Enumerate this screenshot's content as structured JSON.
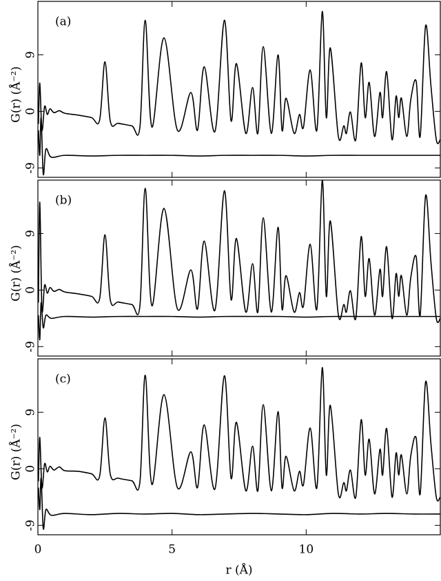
{
  "chart_data": [
    {
      "type": "line",
      "label": "(a)",
      "ylabel": "G(r) (Å⁻²)",
      "xlim": [
        0,
        15
      ],
      "ylim": [
        -10.5,
        17.5
      ],
      "xticks": [
        0,
        5,
        10
      ],
      "yticks": [
        -9,
        0,
        9
      ],
      "series": [
        {
          "color": "#000000",
          "x": [
            0.02,
            0.07,
            0.15,
            0.25,
            0.35,
            0.45,
            0.6,
            0.8,
            1.0,
            1.5,
            2.0,
            2.3,
            2.5,
            2.7,
            3.0,
            3.5,
            3.8,
            4.0,
            4.25,
            4.7,
            5.2,
            5.7,
            5.95,
            6.2,
            6.6,
            6.95,
            7.2,
            7.4,
            7.75,
            8.0,
            8.2,
            8.4,
            8.7,
            8.95,
            9.1,
            9.25,
            9.55,
            9.75,
            9.9,
            10.15,
            10.4,
            10.6,
            10.75,
            10.9,
            11.2,
            11.4,
            11.5,
            11.65,
            11.85,
            12.05,
            12.2,
            12.35,
            12.55,
            12.75,
            12.85,
            13.0,
            13.2,
            13.35,
            13.45,
            13.55,
            13.75,
            13.9,
            14.1,
            14.25,
            14.45,
            14.65,
            14.85,
            15.0
          ],
          "values": [
            -2,
            4.5,
            -3,
            0.8,
            -0.5,
            0.4,
            -0.2,
            0.1,
            -0.3,
            -0.6,
            -1.0,
            -1.4,
            7.9,
            -1.6,
            -1.9,
            -2.3,
            -2.6,
            14.5,
            -2.5,
            11.7,
            -3.0,
            3.0,
            -3.0,
            7.1,
            -3.2,
            14.5,
            -1.5,
            7.6,
            -3.5,
            3.8,
            -3.5,
            10.3,
            -3.5,
            9.0,
            -3.0,
            2.1,
            -3.5,
            -0.5,
            -2.5,
            6.6,
            -3.0,
            15.9,
            -1.0,
            10.1,
            -4.0,
            -2.3,
            -3.5,
            -0.1,
            -4.5,
            7.7,
            -1.0,
            4.6,
            -4.0,
            3.0,
            -1.0,
            6.3,
            -4.5,
            2.4,
            -1.0,
            2.1,
            -4.0,
            1.9,
            4.8,
            -4.0,
            13.6,
            4.1,
            -4.5,
            -4.5
          ]
        },
        {
          "color": "#000000",
          "x": [
            0.02,
            0.07,
            0.12,
            0.2,
            0.3,
            0.5,
            1,
            2,
            3,
            4,
            5,
            6,
            7,
            8,
            9,
            10,
            11,
            12,
            13,
            14,
            15
          ],
          "values": [
            -3,
            -7,
            -1,
            -10,
            -6,
            -7.3,
            -7,
            -7.1,
            -7,
            -7,
            -7,
            -7.1,
            -7,
            -7,
            -7,
            -7.1,
            -7,
            -7,
            -7,
            -7,
            -7
          ]
        }
      ]
    },
    {
      "type": "line",
      "label": "(b)",
      "ylabel": "G(r) (Å⁻²)",
      "xlim": [
        0,
        15
      ],
      "ylim": [
        -10.5,
        17.5
      ],
      "xticks": [
        0,
        5,
        10
      ],
      "yticks": [
        -9,
        0,
        9
      ],
      "series": [
        {
          "color": "#000000",
          "x": [
            0.02,
            0.07,
            0.15,
            0.25,
            0.35,
            0.45,
            0.6,
            0.8,
            1.0,
            1.5,
            2.0,
            2.3,
            2.5,
            2.7,
            3.0,
            3.5,
            3.8,
            4.0,
            4.25,
            4.7,
            5.2,
            5.7,
            5.95,
            6.2,
            6.6,
            6.95,
            7.2,
            7.4,
            7.75,
            8.0,
            8.2,
            8.4,
            8.7,
            8.95,
            9.1,
            9.25,
            9.55,
            9.75,
            9.9,
            10.15,
            10.4,
            10.6,
            10.75,
            10.9,
            11.2,
            11.4,
            11.5,
            11.65,
            11.85,
            12.05,
            12.2,
            12.35,
            12.55,
            12.75,
            12.85,
            13.0,
            13.2,
            13.35,
            13.45,
            13.55,
            13.75,
            13.9,
            14.1,
            14.25,
            14.45,
            14.65,
            14.85,
            15.0
          ],
          "values": [
            -2,
            14,
            -3,
            0.8,
            -0.5,
            0.4,
            -0.2,
            0.1,
            -0.3,
            -0.6,
            -1.0,
            -1.4,
            8.8,
            -1.6,
            -1.9,
            -2.3,
            -2.6,
            16.2,
            -2.5,
            13.0,
            -3.0,
            3.2,
            -3.0,
            7.8,
            -3.2,
            15.8,
            -1.5,
            8.2,
            -3.5,
            4.2,
            -3.5,
            11.5,
            -3.5,
            10.0,
            -3.0,
            2.3,
            -3.5,
            -0.4,
            -2.5,
            7.3,
            -3.0,
            17.5,
            -1.0,
            11.0,
            -4.0,
            -2.3,
            -3.5,
            -0.1,
            -4.5,
            8.5,
            -1.0,
            5.0,
            -4.0,
            3.3,
            -1.0,
            6.9,
            -4.5,
            2.6,
            -1.0,
            2.3,
            -4.0,
            2.0,
            5.3,
            -4.0,
            15.0,
            4.5,
            -4.5,
            -4.5
          ]
        },
        {
          "color": "#000000",
          "x": [
            0.02,
            0.07,
            0.12,
            0.2,
            0.3,
            0.5,
            1,
            2,
            3,
            4,
            5,
            6,
            7,
            8,
            9,
            10,
            11,
            12,
            13,
            14,
            15
          ],
          "values": [
            -4,
            -7.9,
            -2,
            -6,
            -4,
            -4.5,
            -4.2,
            -4.3,
            -4.2,
            -4.2,
            -4.2,
            -4.3,
            -4.2,
            -4.2,
            -4.2,
            -4.3,
            -4.2,
            -4.2,
            -4.2,
            -4.2,
            -4.2
          ]
        }
      ]
    },
    {
      "type": "line",
      "label": "(c)",
      "ylabel": "G(r) (Å⁻²)",
      "xlabel": "r (Å)",
      "xlim": [
        0,
        15
      ],
      "ylim": [
        -10.5,
        17.5
      ],
      "xticks": [
        0,
        5,
        10
      ],
      "yticks": [
        -9,
        0,
        9
      ],
      "series": [
        {
          "color": "#000000",
          "x": [
            0.02,
            0.07,
            0.15,
            0.25,
            0.35,
            0.45,
            0.6,
            0.8,
            1.0,
            1.5,
            2.0,
            2.3,
            2.5,
            2.7,
            3.0,
            3.5,
            3.8,
            4.0,
            4.25,
            4.7,
            5.2,
            5.7,
            5.95,
            6.2,
            6.6,
            6.95,
            7.2,
            7.4,
            7.75,
            8.0,
            8.2,
            8.4,
            8.7,
            8.95,
            9.1,
            9.25,
            9.55,
            9.75,
            9.9,
            10.15,
            10.4,
            10.6,
            10.75,
            10.9,
            11.2,
            11.4,
            11.5,
            11.65,
            11.85,
            12.05,
            12.2,
            12.35,
            12.55,
            12.75,
            12.85,
            13.0,
            13.2,
            13.35,
            13.45,
            13.55,
            13.75,
            13.9,
            14.1,
            14.25,
            14.45,
            14.65,
            14.85,
            15.0
          ],
          "values": [
            -2,
            5,
            -3,
            0.8,
            -0.5,
            0.4,
            -0.2,
            0.3,
            -0.3,
            -0.4,
            -0.8,
            -1.2,
            8.1,
            -0.9,
            -1.5,
            -1.9,
            -2.2,
            14.9,
            -2.5,
            11.8,
            -3.0,
            2.7,
            -3.0,
            7.0,
            -3.2,
            14.8,
            -1.5,
            7.4,
            -3.5,
            3.6,
            -3.5,
            10.2,
            -3.5,
            9.1,
            -3.0,
            2.0,
            -3.5,
            -0.4,
            -2.5,
            6.5,
            -3.0,
            16.1,
            -1.0,
            10.1,
            -4.0,
            -2.2,
            -3.5,
            -0.2,
            -4.5,
            7.8,
            -1.0,
            4.7,
            -4.0,
            3.1,
            -1.0,
            6.4,
            -4.5,
            2.5,
            -1.0,
            2.2,
            -4.0,
            2.1,
            4.9,
            -4.0,
            13.8,
            4.0,
            -4.5,
            -4.5
          ]
        },
        {
          "color": "#000000",
          "x": [
            0.02,
            0.07,
            0.12,
            0.2,
            0.3,
            0.5,
            1,
            2,
            3,
            4,
            5,
            6,
            7,
            8,
            9,
            10,
            11,
            12,
            13,
            14,
            15
          ],
          "values": [
            -3,
            -6.5,
            -1.5,
            -9.5,
            -6.5,
            -7.4,
            -7.1,
            -7.3,
            -7.1,
            -7.2,
            -7.1,
            -7.3,
            -7.2,
            -7.1,
            -7.2,
            -7.3,
            -7.1,
            -7.2,
            -7.1,
            -7.2,
            -7.2
          ]
        }
      ]
    }
  ]
}
